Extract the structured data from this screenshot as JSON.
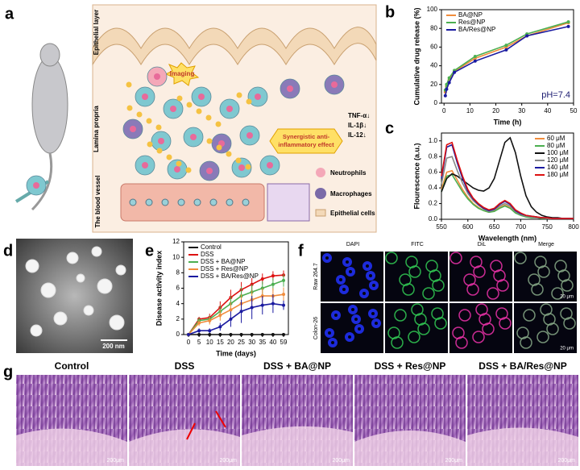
{
  "panel_labels": [
    "a",
    "b",
    "c",
    "d",
    "e",
    "f",
    "g"
  ],
  "schematic": {
    "layers": [
      "Epithelial layer",
      "Lamina propria",
      "The blood vessel"
    ],
    "imaging": "Imaging",
    "effect": [
      "Synergistic anti-",
      "inflammatory effect"
    ],
    "cytokines": [
      "TNF-α↓",
      "IL-1β↓",
      "IL-12↓"
    ],
    "legend": [
      "Neutrophils",
      "Macrophages",
      "Epithelial cells"
    ]
  },
  "chart_data": [
    {
      "type": "line",
      "y_label": "Cumulative drug release (%)",
      "x_label": "Time (h)",
      "x": [
        0.5,
        1,
        2,
        4,
        12,
        24,
        32,
        48
      ],
      "xlim": [
        -1,
        50
      ],
      "xticks": [
        0,
        10,
        20,
        30,
        40,
        50
      ],
      "ylim": [
        0,
        100
      ],
      "yticks": [
        0,
        20,
        40,
        60,
        80,
        100
      ],
      "legend": "upper left",
      "annotation": "pH=7.4",
      "series": [
        {
          "name": "BA@NP",
          "color": "#f08c3c",
          "values": [
            12,
            18,
            25,
            34,
            48,
            60,
            72,
            86
          ]
        },
        {
          "name": "Res@NP",
          "color": "#4caf50",
          "values": [
            14,
            20,
            27,
            35,
            50,
            62,
            74,
            87
          ]
        },
        {
          "name": "BA/Res@NP",
          "color": "#1a1aa0",
          "values": [
            8,
            15,
            22,
            33,
            45,
            57,
            72,
            82
          ]
        }
      ]
    },
    {
      "type": "line",
      "y_label": "Flourescence (a.u.)",
      "x_label": "Wavelength (nm)",
      "x": [
        550,
        560,
        570,
        580,
        590,
        600,
        610,
        620,
        630,
        640,
        650,
        660,
        670,
        680,
        690,
        700,
        710,
        720,
        730,
        740,
        750,
        760,
        770,
        780,
        790,
        800
      ],
      "xlim": [
        550,
        800
      ],
      "xticks": [
        550,
        600,
        650,
        700,
        750,
        800
      ],
      "ylim": [
        0,
        1.1
      ],
      "yticks": [
        {
          "value": 0,
          "label": "0.0"
        },
        {
          "value": 0.2,
          "label": "0.2"
        },
        {
          "value": 0.4,
          "label": "0.4"
        },
        {
          "value": 0.6,
          "label": "0.6"
        },
        {
          "value": 0.8,
          "label": "0.8"
        },
        {
          "value": 1,
          "label": "1.0"
        }
      ],
      "legend": "upper right",
      "series": [
        {
          "name": "60 μM",
          "color": "#f08c3c",
          "values": [
            0.38,
            0.6,
            0.62,
            0.5,
            0.38,
            0.28,
            0.2,
            0.15,
            0.11,
            0.09,
            0.11,
            0.15,
            0.18,
            0.15,
            0.09,
            0.05,
            0.04,
            0.03,
            0.02,
            0.02,
            0.01,
            0.01,
            0.01,
            0.01,
            0.01,
            0.01
          ]
        },
        {
          "name": "80 μM",
          "color": "#4caf50",
          "values": [
            0.35,
            0.55,
            0.57,
            0.46,
            0.35,
            0.26,
            0.19,
            0.14,
            0.11,
            0.09,
            0.1,
            0.14,
            0.17,
            0.14,
            0.08,
            0.05,
            0.03,
            0.02,
            0.02,
            0.01,
            0.01,
            0.01,
            0.01,
            0.01,
            0.01,
            0.01
          ]
        },
        {
          "name": "100 μM",
          "color": "#111111",
          "values": [
            0.35,
            0.52,
            0.58,
            0.55,
            0.5,
            0.45,
            0.4,
            0.37,
            0.36,
            0.4,
            0.52,
            0.75,
            0.98,
            1.04,
            0.85,
            0.55,
            0.3,
            0.16,
            0.09,
            0.05,
            0.03,
            0.02,
            0.02,
            0.01,
            0.01,
            0.01
          ]
        },
        {
          "name": "120 μM",
          "color": "#888888",
          "values": [
            0.45,
            0.78,
            0.8,
            0.62,
            0.46,
            0.33,
            0.24,
            0.18,
            0.13,
            0.1,
            0.12,
            0.17,
            0.2,
            0.17,
            0.1,
            0.06,
            0.04,
            0.03,
            0.02,
            0.02,
            0.01,
            0.01,
            0.01,
            0.01,
            0.01,
            0.01
          ]
        },
        {
          "name": "140 μM",
          "color": "#1a1aa0",
          "values": [
            0.52,
            0.92,
            0.95,
            0.72,
            0.52,
            0.36,
            0.26,
            0.19,
            0.14,
            0.11,
            0.13,
            0.19,
            0.23,
            0.19,
            0.11,
            0.07,
            0.05,
            0.04,
            0.03,
            0.02,
            0.02,
            0.01,
            0.01,
            0.01,
            0.01,
            0.01
          ]
        },
        {
          "name": "180 μM",
          "color": "#dd1111",
          "values": [
            0.55,
            0.95,
            0.98,
            0.75,
            0.55,
            0.38,
            0.27,
            0.2,
            0.15,
            0.12,
            0.14,
            0.2,
            0.24,
            0.2,
            0.12,
            0.08,
            0.05,
            0.04,
            0.03,
            0.02,
            0.02,
            0.01,
            0.01,
            0.01,
            0.01,
            0.01
          ]
        }
      ]
    },
    {
      "type": "line",
      "y_label": "Disease activity index",
      "x_label": "Time (days)",
      "categories": [
        "0",
        "5",
        "10",
        "15",
        "20",
        "25",
        "30",
        "35",
        "40",
        "59"
      ],
      "ylim": [
        0,
        12
      ],
      "yticks": [
        0,
        2,
        4,
        6,
        8,
        10,
        12
      ],
      "legend": "upper left",
      "series": [
        {
          "name": "Control",
          "color": "#111111",
          "values": [
            0,
            0,
            0,
            0,
            0,
            0,
            0,
            0,
            0,
            0
          ],
          "errors": [
            0,
            0,
            0,
            0,
            0,
            0,
            0,
            0,
            0,
            0
          ]
        },
        {
          "name": "DSS",
          "color": "#dd1111",
          "values": [
            0,
            2,
            2.2,
            3.5,
            4.8,
            5.8,
            6.5,
            7.2,
            7.6,
            7.7
          ],
          "errors": [
            0,
            0.3,
            0.5,
            0.8,
            1,
            1,
            0.8,
            0.7,
            0.6,
            0.6
          ]
        },
        {
          "name": "DSS + BA@NP",
          "color": "#4caf50",
          "values": [
            0,
            1.8,
            2,
            3,
            4,
            5,
            5.5,
            6,
            6.5,
            7
          ],
          "errors": [
            0,
            0.4,
            0.5,
            0.8,
            1,
            1.2,
            1,
            0.9,
            0.8,
            0.8
          ]
        },
        {
          "name": "DSS + Res@NP",
          "color": "#f08c3c",
          "values": [
            0,
            1.5,
            1.8,
            2.5,
            3.2,
            4,
            4.5,
            5,
            5,
            5.2
          ],
          "errors": [
            0,
            0.4,
            0.5,
            0.7,
            1,
            1.2,
            1.2,
            1,
            1,
            0.9
          ]
        },
        {
          "name": "DSS + BA/Res@NP",
          "color": "#1a1aa0",
          "values": [
            0,
            0.5,
            0.5,
            1,
            2,
            3,
            3.5,
            3.8,
            4,
            3.8
          ],
          "errors": [
            0,
            0.3,
            0.3,
            0.5,
            1,
            1.5,
            1.5,
            1.2,
            1.2,
            0.6
          ]
        }
      ]
    }
  ],
  "tem": {
    "scale_bar": "200 nm"
  },
  "microscopy": {
    "columns": [
      "DAPI",
      "FITC",
      "DiL",
      "Merge"
    ],
    "rows": [
      "Raw 264.7",
      "Colon-26"
    ],
    "scale_bar": "20 μm"
  },
  "histology": {
    "titles": [
      "Control",
      "DSS",
      "DSS + BA@NP",
      "DSS + Res@NP",
      "DSS + BA/Res@NP"
    ],
    "scale_bar": "200μm"
  }
}
